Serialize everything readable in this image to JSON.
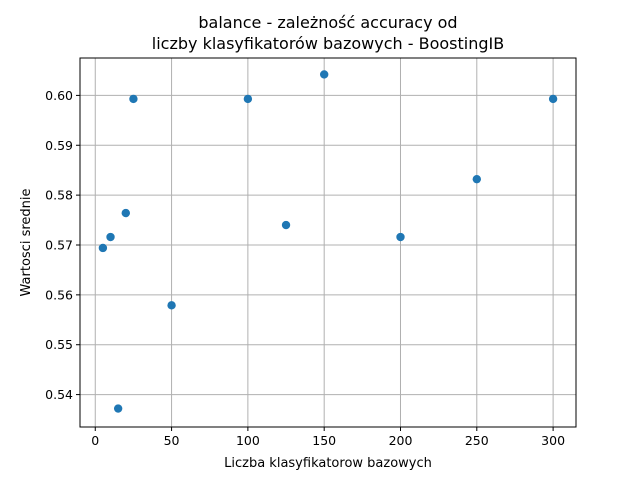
{
  "chart_data": {
    "type": "scatter",
    "title_line1": "balance - zależność accuracy od",
    "title_line2": "liczby klasyfikatorów bazowych - BoostingIB",
    "xlabel": "Liczba klasyfikatorow bazowych",
    "ylabel": "Wartosci srednie",
    "xlim": [
      -10,
      315
    ],
    "ylim": [
      0.5335,
      0.6075
    ],
    "xticks": [
      0,
      50,
      100,
      150,
      200,
      250,
      300
    ],
    "yticks": [
      0.54,
      0.55,
      0.56,
      0.57,
      0.58,
      0.59,
      0.6
    ],
    "ytick_labels": [
      "0.54",
      "0.55",
      "0.56",
      "0.57",
      "0.58",
      "0.59",
      "0.60"
    ],
    "grid": true,
    "marker_color": "#1f77b4",
    "points": [
      {
        "x": 5,
        "y": 0.5694
      },
      {
        "x": 10,
        "y": 0.5716
      },
      {
        "x": 15,
        "y": 0.5372
      },
      {
        "x": 20,
        "y": 0.5764
      },
      {
        "x": 25,
        "y": 0.5993
      },
      {
        "x": 50,
        "y": 0.5579
      },
      {
        "x": 100,
        "y": 0.5993
      },
      {
        "x": 125,
        "y": 0.574
      },
      {
        "x": 150,
        "y": 0.6042
      },
      {
        "x": 200,
        "y": 0.5716
      },
      {
        "x": 250,
        "y": 0.5832
      },
      {
        "x": 300,
        "y": 0.5993
      }
    ]
  }
}
